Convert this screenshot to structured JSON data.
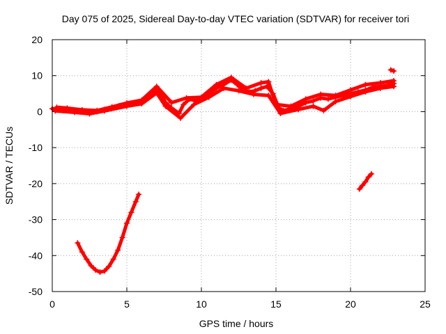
{
  "chart_data": {
    "type": "scatter",
    "title": "Day 075 of 2025, Sidereal Day-to-day VTEC variation (SDTVAR) for receiver tori",
    "xlabel": "GPS time / hours",
    "ylabel": "SDTVAR / TECUs",
    "xlim": [
      0,
      25
    ],
    "ylim": [
      -50,
      20
    ],
    "xticks": [
      0,
      5,
      10,
      15,
      20,
      25
    ],
    "yticks": [
      -50,
      -40,
      -30,
      -20,
      -10,
      0,
      10,
      20
    ],
    "grid": true,
    "color": "#ff0000",
    "series": [
      {
        "name": "main track",
        "points": [
          [
            0.0,
            0.8
          ],
          [
            0.5,
            0.9
          ],
          [
            1.0,
            0.5
          ],
          [
            1.5,
            0.2
          ],
          [
            2.0,
            0.0
          ],
          [
            2.5,
            -0.3
          ],
          [
            3.0,
            0.0
          ],
          [
            3.5,
            0.6
          ],
          [
            4.0,
            1.0
          ],
          [
            4.5,
            1.6
          ],
          [
            5.0,
            2.0
          ],
          [
            5.5,
            2.3
          ],
          [
            6.0,
            2.7
          ],
          [
            6.5,
            4.0
          ],
          [
            7.0,
            6.5
          ],
          [
            7.3,
            5.0
          ],
          [
            7.6,
            2.5
          ],
          [
            8.0,
            1.0
          ],
          [
            8.5,
            -0.5
          ],
          [
            8.8,
            2.0
          ],
          [
            9.2,
            3.5
          ],
          [
            9.6,
            3.0
          ],
          [
            10.0,
            3.5
          ],
          [
            10.5,
            5.0
          ],
          [
            11.0,
            6.5
          ],
          [
            11.5,
            7.5
          ],
          [
            12.0,
            8.8
          ],
          [
            12.4,
            7.5
          ],
          [
            12.8,
            6.0
          ],
          [
            13.2,
            5.5
          ],
          [
            13.6,
            5.8
          ],
          [
            14.0,
            6.5
          ],
          [
            14.4,
            7.0
          ],
          [
            14.8,
            5.0
          ],
          [
            15.2,
            1.0
          ],
          [
            15.5,
            0.3
          ],
          [
            16.0,
            0.8
          ],
          [
            16.5,
            1.5
          ],
          [
            17.0,
            2.5
          ],
          [
            17.5,
            3.0
          ],
          [
            18.0,
            3.8
          ],
          [
            18.5,
            3.5
          ],
          [
            19.0,
            4.0
          ],
          [
            19.5,
            4.5
          ],
          [
            20.0,
            5.0
          ],
          [
            20.5,
            5.5
          ],
          [
            21.0,
            6.0
          ],
          [
            21.5,
            6.8
          ],
          [
            22.0,
            7.0
          ],
          [
            22.5,
            7.3
          ],
          [
            22.9,
            7.8
          ]
        ]
      },
      {
        "name": "upper track",
        "points": [
          [
            0.3,
            1.2
          ],
          [
            1.0,
            1.0
          ],
          [
            2.0,
            0.5
          ],
          [
            3.0,
            0.3
          ],
          [
            4.0,
            1.3
          ],
          [
            5.0,
            2.4
          ],
          [
            6.0,
            3.2
          ],
          [
            7.0,
            7.0
          ],
          [
            8.0,
            2.5
          ],
          [
            9.0,
            3.8
          ],
          [
            10.0,
            4.0
          ],
          [
            11.0,
            7.5
          ],
          [
            12.0,
            9.5
          ],
          [
            13.0,
            6.5
          ],
          [
            14.0,
            8.0
          ],
          [
            14.5,
            8.3
          ],
          [
            15.0,
            2.0
          ],
          [
            16.0,
            1.5
          ],
          [
            17.0,
            3.5
          ],
          [
            18.0,
            4.8
          ],
          [
            19.0,
            4.5
          ],
          [
            20.0,
            6.0
          ],
          [
            21.0,
            7.5
          ],
          [
            22.0,
            8.0
          ],
          [
            22.9,
            8.6
          ]
        ]
      },
      {
        "name": "lower track",
        "points": [
          [
            0.2,
            0.2
          ],
          [
            1.5,
            -0.2
          ],
          [
            2.5,
            -0.6
          ],
          [
            3.5,
            0.2
          ],
          [
            5.0,
            1.5
          ],
          [
            6.0,
            2.2
          ],
          [
            7.0,
            5.2
          ],
          [
            7.6,
            1.5
          ],
          [
            8.6,
            -1.8
          ],
          [
            9.5,
            2.0
          ],
          [
            10.5,
            4.0
          ],
          [
            11.5,
            6.5
          ],
          [
            12.5,
            5.8
          ],
          [
            13.5,
            4.8
          ],
          [
            14.5,
            4.5
          ],
          [
            15.3,
            -0.5
          ],
          [
            16.5,
            0.6
          ],
          [
            17.5,
            1.5
          ],
          [
            18.2,
            0.3
          ],
          [
            19.0,
            2.8
          ],
          [
            20.0,
            4.2
          ],
          [
            21.0,
            5.5
          ],
          [
            22.0,
            6.5
          ],
          [
            22.9,
            7.0
          ]
        ]
      },
      {
        "name": "short arc 1",
        "points": [
          [
            1.7,
            -36.5
          ],
          [
            2.0,
            -39.0
          ],
          [
            2.3,
            -41.0
          ],
          [
            2.6,
            -42.8
          ],
          [
            2.9,
            -44.0
          ],
          [
            3.2,
            -44.6
          ],
          [
            3.5,
            -44.3
          ],
          [
            3.8,
            -43.0
          ],
          [
            4.1,
            -41.0
          ],
          [
            4.4,
            -38.5
          ],
          [
            4.7,
            -35.0
          ],
          [
            5.0,
            -31.0
          ],
          [
            5.3,
            -28.0
          ],
          [
            5.6,
            -25.0
          ],
          [
            5.8,
            -23.0
          ]
        ]
      },
      {
        "name": "short arc 2",
        "points": [
          [
            20.6,
            -21.5
          ],
          [
            20.8,
            -20.5
          ],
          [
            21.0,
            -19.5
          ],
          [
            21.2,
            -18.2
          ],
          [
            21.4,
            -17.3
          ]
        ]
      },
      {
        "name": "short arc 3",
        "points": [
          [
            22.7,
            11.6
          ],
          [
            22.9,
            11.3
          ]
        ]
      }
    ]
  }
}
